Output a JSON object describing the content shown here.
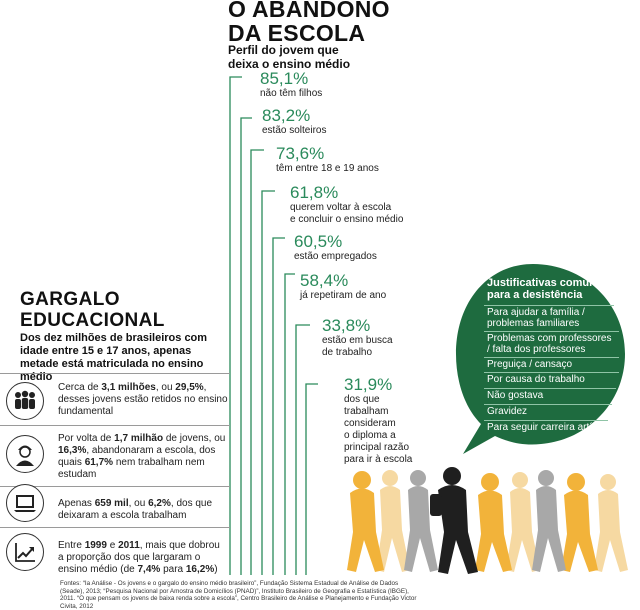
{
  "title_line1": "O ABANDONO",
  "title_line2": "DA ESCOLA",
  "subtitle_line1": "Perfil do jovem que",
  "subtitle_line2": "deixa o ensino médio",
  "stats": [
    {
      "pct": "85,1%",
      "label": [
        "não têm filhos"
      ]
    },
    {
      "pct": "83,2%",
      "label": [
        "estão solteiros"
      ]
    },
    {
      "pct": "73,6%",
      "label": [
        "têm entre 18 e 19 anos"
      ]
    },
    {
      "pct": "61,8%",
      "label": [
        "querem voltar à escola",
        "e concluir o ensino médio"
      ]
    },
    {
      "pct": "60,5%",
      "label": [
        "estão empregados"
      ]
    },
    {
      "pct": "58,4%",
      "label": [
        "já repetiram de ano"
      ]
    },
    {
      "pct": "33,8%",
      "label": [
        "estão em busca",
        "de trabalho"
      ]
    },
    {
      "pct": "31,9%",
      "label": [
        "dos que",
        "trabalham",
        "consideram",
        "o diploma a",
        "principal razão",
        "para ir à escola"
      ]
    }
  ],
  "gargalo_line1": "GARGALO",
  "gargalo_line2": "EDUCACIONAL",
  "gargalo_sub": "Dos dez milhões de brasileiros com idade entre 15 e 17 anos, apenas metade está matriculada no ensino médio",
  "rows": [
    {
      "icon": "group-of-people-icon",
      "parts": [
        [
          "Cerca de ",
          false
        ],
        [
          "3,1 milhões",
          true
        ],
        [
          ", ou ",
          false
        ],
        [
          "29,5%",
          true
        ],
        [
          ", desses jovens estão retidos no ensino fundamental",
          false
        ]
      ]
    },
    {
      "icon": "young-person-icon",
      "parts": [
        [
          "Por volta de ",
          false
        ],
        [
          "1,7 milhão",
          true
        ],
        [
          " de jovens, ou ",
          false
        ],
        [
          "16,3%",
          true
        ],
        [
          ", abandonaram a escola, dos quais ",
          false
        ],
        [
          "61,7%",
          true
        ],
        [
          " nem trabalham nem estudam",
          false
        ]
      ]
    },
    {
      "icon": "laptop-icon",
      "parts": [
        [
          "Apenas ",
          false
        ],
        [
          "659 mil",
          true
        ],
        [
          ", ou ",
          false
        ],
        [
          "6,2%",
          true
        ],
        [
          ", dos que deixaram a escola trabalham",
          false
        ]
      ]
    },
    {
      "icon": "rising-chart-icon",
      "parts": [
        [
          "Entre ",
          false
        ],
        [
          "1999",
          true
        ],
        [
          " e ",
          false
        ],
        [
          "2011",
          true
        ],
        [
          ", mais que dobrou a proporção dos que largaram o ensino médio (de ",
          false
        ],
        [
          "7,4%",
          true
        ],
        [
          " para ",
          false
        ],
        [
          "16,2%",
          true
        ],
        [
          ")",
          false
        ]
      ]
    }
  ],
  "bubble_title_line1": "Justificativas comuns",
  "bubble_title_line2": "para a desistência",
  "reasons": [
    [
      "Para ajudar a família /",
      "problemas familiares"
    ],
    [
      "Problemas com professores",
      "/ falta dos professores"
    ],
    [
      "Preguiça / cansaço"
    ],
    [
      "Por causa do trabalho"
    ],
    [
      "Não gostava"
    ],
    [
      "Gravidez"
    ],
    [
      "Para seguir carreira artística"
    ]
  ],
  "sources": "Fontes: “Ia Análise - Os jovens e o gargalo do ensino médio brasileiro”, Fundação Sistema Estadual de Análise de Dados (Seade), 2013; “Pesquisa Nacional por Amostra de Domicílios (PNAD)”, Instituto Brasileiro de Geografia e Estatística (IBGE), 2011. “O que pensam os jovens de baixa renda sobre a escola”, Centro Brasileiro de Análise e Planejamento e Fundação Victor Civita, 2012",
  "colors": {
    "accent_green": "#2a8a5b",
    "bubble_green": "#1e6b3f",
    "figure_orange": "#f2b33a"
  }
}
